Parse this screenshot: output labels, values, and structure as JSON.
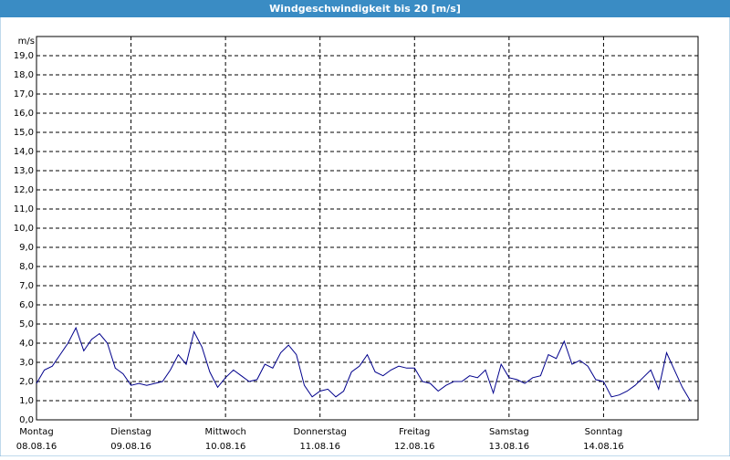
{
  "chart_data": {
    "type": "line",
    "title": "Windgeschwindigkeit bis 20 [m/s]",
    "y_label": "m/s",
    "days": [
      {
        "name": "Montag",
        "date": "08.08.16"
      },
      {
        "name": "Dienstag",
        "date": "09.08.16"
      },
      {
        "name": "Mittwoch",
        "date": "10.08.16"
      },
      {
        "name": "Donnerstag",
        "date": "11.08.16"
      },
      {
        "name": "Freitag",
        "date": "12.08.16"
      },
      {
        "name": "Samstag",
        "date": "13.08.16"
      },
      {
        "name": "Sonntag",
        "date": "14.08.16"
      }
    ],
    "ylim": [
      0,
      20
    ],
    "yticks": [
      {
        "value": 0,
        "label": "0,0"
      },
      {
        "value": 1,
        "label": "1,0"
      },
      {
        "value": 2,
        "label": "2,0"
      },
      {
        "value": 3,
        "label": "3,0"
      },
      {
        "value": 4,
        "label": "4,0"
      },
      {
        "value": 5,
        "label": "5,0"
      },
      {
        "value": 6,
        "label": "6,0"
      },
      {
        "value": 7,
        "label": "7,0"
      },
      {
        "value": 8,
        "label": "8,0"
      },
      {
        "value": 9,
        "label": "9,0"
      },
      {
        "value": 10,
        "label": "10,0"
      },
      {
        "value": 11,
        "label": "11,0"
      },
      {
        "value": 12,
        "label": "12,0"
      },
      {
        "value": 13,
        "label": "13,0"
      },
      {
        "value": 14,
        "label": "14,0"
      },
      {
        "value": 15,
        "label": "15,0"
      },
      {
        "value": 16,
        "label": "16,0"
      },
      {
        "value": 17,
        "label": "17,0"
      },
      {
        "value": 18,
        "label": "18,0"
      },
      {
        "value": 19,
        "label": "19,0"
      }
    ],
    "grid": true,
    "series": [
      {
        "color": "#00008b",
        "values": [
          1.9,
          2.6,
          2.8,
          3.4,
          4.0,
          4.8,
          3.6,
          4.2,
          4.5,
          4.0,
          2.7,
          2.4,
          1.8,
          1.9,
          1.8,
          1.9,
          2.0,
          2.6,
          3.4,
          2.9,
          4.6,
          3.8,
          2.5,
          1.7,
          2.2,
          2.6,
          2.3,
          2.0,
          2.1,
          2.9,
          2.7,
          3.5,
          3.9,
          3.4,
          1.8,
          1.2,
          1.5,
          1.6,
          1.2,
          1.5,
          2.5,
          2.8,
          3.4,
          2.5,
          2.3,
          2.6,
          2.8,
          2.7,
          2.7,
          2.0,
          1.9,
          1.5,
          1.8,
          2.0,
          2.0,
          2.3,
          2.2,
          2.6,
          1.4,
          2.9,
          2.2,
          2.1,
          1.9,
          2.2,
          2.3,
          3.4,
          3.2,
          4.1,
          2.9,
          3.1,
          2.8,
          2.1,
          2.0,
          1.2,
          1.3,
          1.5,
          1.8,
          2.2,
          2.6,
          1.6,
          3.5,
          2.6,
          1.7,
          1.0
        ]
      }
    ]
  }
}
